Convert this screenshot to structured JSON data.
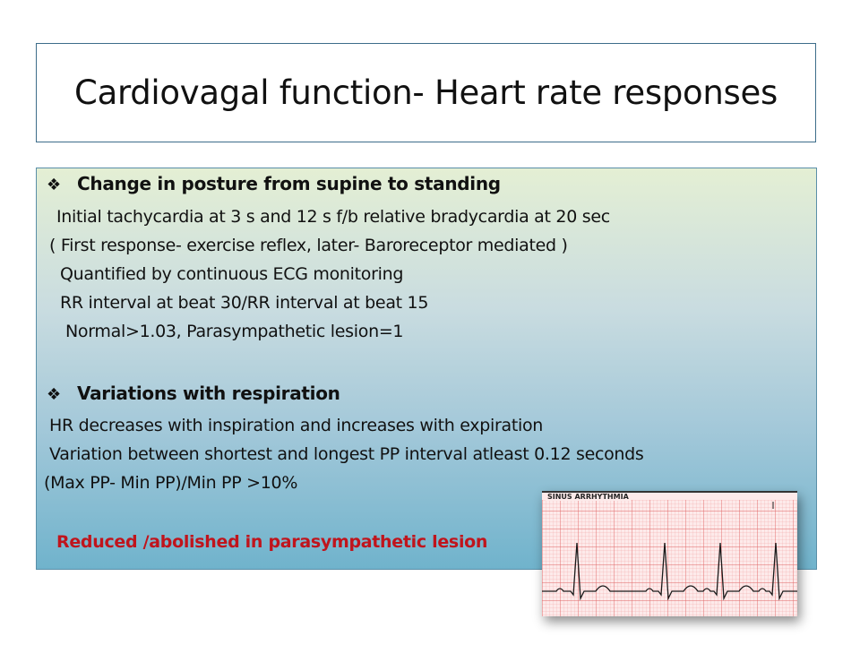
{
  "slide": {
    "title": "Cardiovagal function- Heart rate responses",
    "bullet_symbol": "❖",
    "section1": {
      "heading": "Change in posture from supine to standing",
      "lines": [
        "Initial tachycardia at 3 s and 12 s f/b relative bradycardia at 20 sec",
        "( First response- exercise reflex, later- Baroreceptor mediated )",
        "Quantified by  continuous ECG monitoring",
        "RR interval at beat 30/RR interval at beat 15",
        "Normal>1.03, Parasympathetic lesion=1"
      ]
    },
    "section2": {
      "heading": "Variations with respiration",
      "lines": [
        "HR decreases with inspiration and  increases with expiration",
        "Variation between shortest and longest PP interval atleast 0.12 seconds",
        "(Max PP- Min PP)/Min PP  >10%"
      ]
    },
    "note": "Reduced /abolished in parasympathetic lesion",
    "note_color": "#c0141c",
    "ecg_image": {
      "label": "SINUS ARRHYTHMIA"
    }
  }
}
